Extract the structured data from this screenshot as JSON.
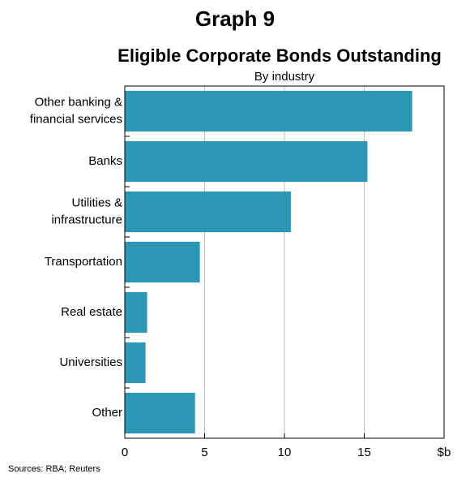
{
  "header": {
    "graph_number": "Graph 9"
  },
  "chart_data": {
    "type": "bar",
    "orientation": "horizontal",
    "title": "Eligible Corporate Bonds Outstanding",
    "subtitle": "By industry",
    "categories": [
      [
        "Other banking &",
        "financial services"
      ],
      [
        "Banks"
      ],
      [
        "Utilities &",
        "infrastructure"
      ],
      [
        "Transportation"
      ],
      [
        "Real estate"
      ],
      [
        "Universities"
      ],
      [
        "Other"
      ]
    ],
    "values": [
      18.0,
      15.2,
      10.4,
      4.7,
      1.4,
      1.3,
      4.4
    ],
    "xlim": [
      0,
      20
    ],
    "xticks": [
      "0",
      "5",
      "10",
      "15",
      "$b"
    ],
    "xtick_values": [
      0,
      5,
      10,
      15,
      20
    ],
    "grid": true,
    "bar_color": "#2b97b5",
    "grid_color": "#bfbfbf"
  },
  "footer": {
    "sources": "Sources: RBA; Reuters"
  }
}
